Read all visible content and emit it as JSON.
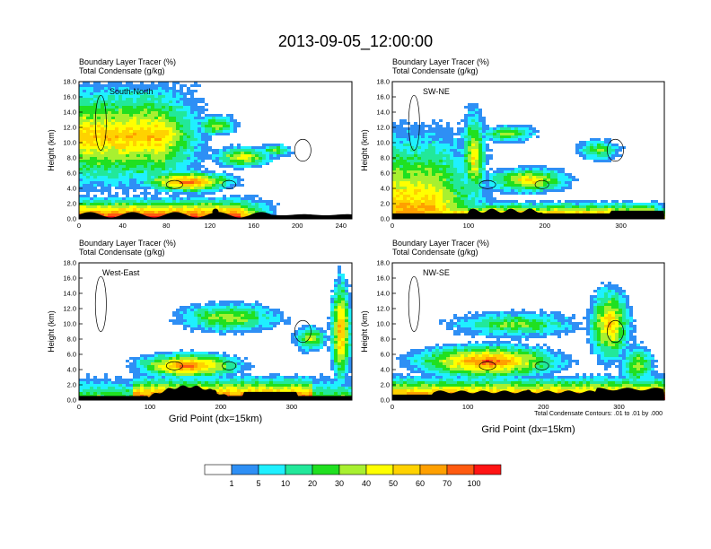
{
  "page": {
    "title": "2013-09-05_12:00:00"
  },
  "colors": [
    "#ffffff",
    "#2e8ff5",
    "#1ff0ff",
    "#22e89a",
    "#20e020",
    "#a8f030",
    "#ffff00",
    "#ffd200",
    "#ffa000",
    "#ff5a10",
    "#ff1414"
  ],
  "terrain_color": "#000000",
  "contour_note": "Total Condensate Contours: .01 to .01 by .000",
  "colorbar": {
    "labels": [
      "1",
      "5",
      "10",
      "20",
      "30",
      "40",
      "50",
      "60",
      "70",
      "100"
    ]
  },
  "chart_data": [
    {
      "type": "heatmap",
      "header": [
        "Boundary Layer Tracer    (%)",
        "Total Condensate    (g/kg)"
      ],
      "panel_label": "South-North",
      "ylabel": "Height (km)",
      "xlabel": "",
      "xlim": [
        0,
        250
      ],
      "ylim": [
        0,
        18
      ],
      "xticks": [
        "0",
        "40",
        "80",
        "120",
        "160",
        "200",
        "240"
      ],
      "yticks": [
        "0.0",
        "2.0",
        "4.0",
        "6.0",
        "8.0",
        "10.0",
        "12.0",
        "14.0",
        "16.0",
        "18.0"
      ],
      "marker_x": 125
    },
    {
      "type": "heatmap",
      "header": [
        "Boundary Layer Tracer    (%)",
        "Total Condensate    (g/kg)"
      ],
      "panel_label": "SW-NE",
      "ylabel": "Height (km)",
      "xlabel": "",
      "xlim": [
        0,
        357
      ],
      "ylim": [
        0,
        18
      ],
      "xticks": [
        "0",
        "100",
        "200",
        "300"
      ],
      "yticks": [
        "0.0",
        "2.0",
        "4.0",
        "6.0",
        "8.0",
        "10.0",
        "12.0",
        "14.0",
        "16.0",
        "18.0"
      ],
      "marker_x": 180
    },
    {
      "type": "heatmap",
      "header": [
        "Boundary Layer Tracer    (%)",
        "Total Condensate    (g/kg)"
      ],
      "panel_label": "West-East",
      "ylabel": "Height (km)",
      "xlabel": "Grid Point (dx=15km)",
      "xlim": [
        0,
        385
      ],
      "ylim": [
        0,
        18
      ],
      "xticks": [
        "0",
        "100",
        "200",
        "300"
      ],
      "yticks": [
        "0.0",
        "2.0",
        "4.0",
        "6.0",
        "8.0",
        "10.0",
        "12.0",
        "14.0",
        "16.0",
        "18.0"
      ],
      "marker_x": 190
    },
    {
      "type": "heatmap",
      "header": [
        "Boundary Layer Tracer    (%)",
        "Total Condensate    (g/kg)"
      ],
      "panel_label": "NW-SE",
      "ylabel": "Height (km)",
      "xlabel": "Grid Point (dx=15km)",
      "xlim": [
        0,
        360
      ],
      "ylim": [
        0,
        18
      ],
      "xticks": [
        "0",
        "100",
        "200",
        "300"
      ],
      "yticks": [
        "0.0",
        "2.0",
        "4.0",
        "6.0",
        "8.0",
        "10.0",
        "12.0",
        "14.0",
        "16.0",
        "18.0"
      ],
      "marker_x": 180
    }
  ]
}
